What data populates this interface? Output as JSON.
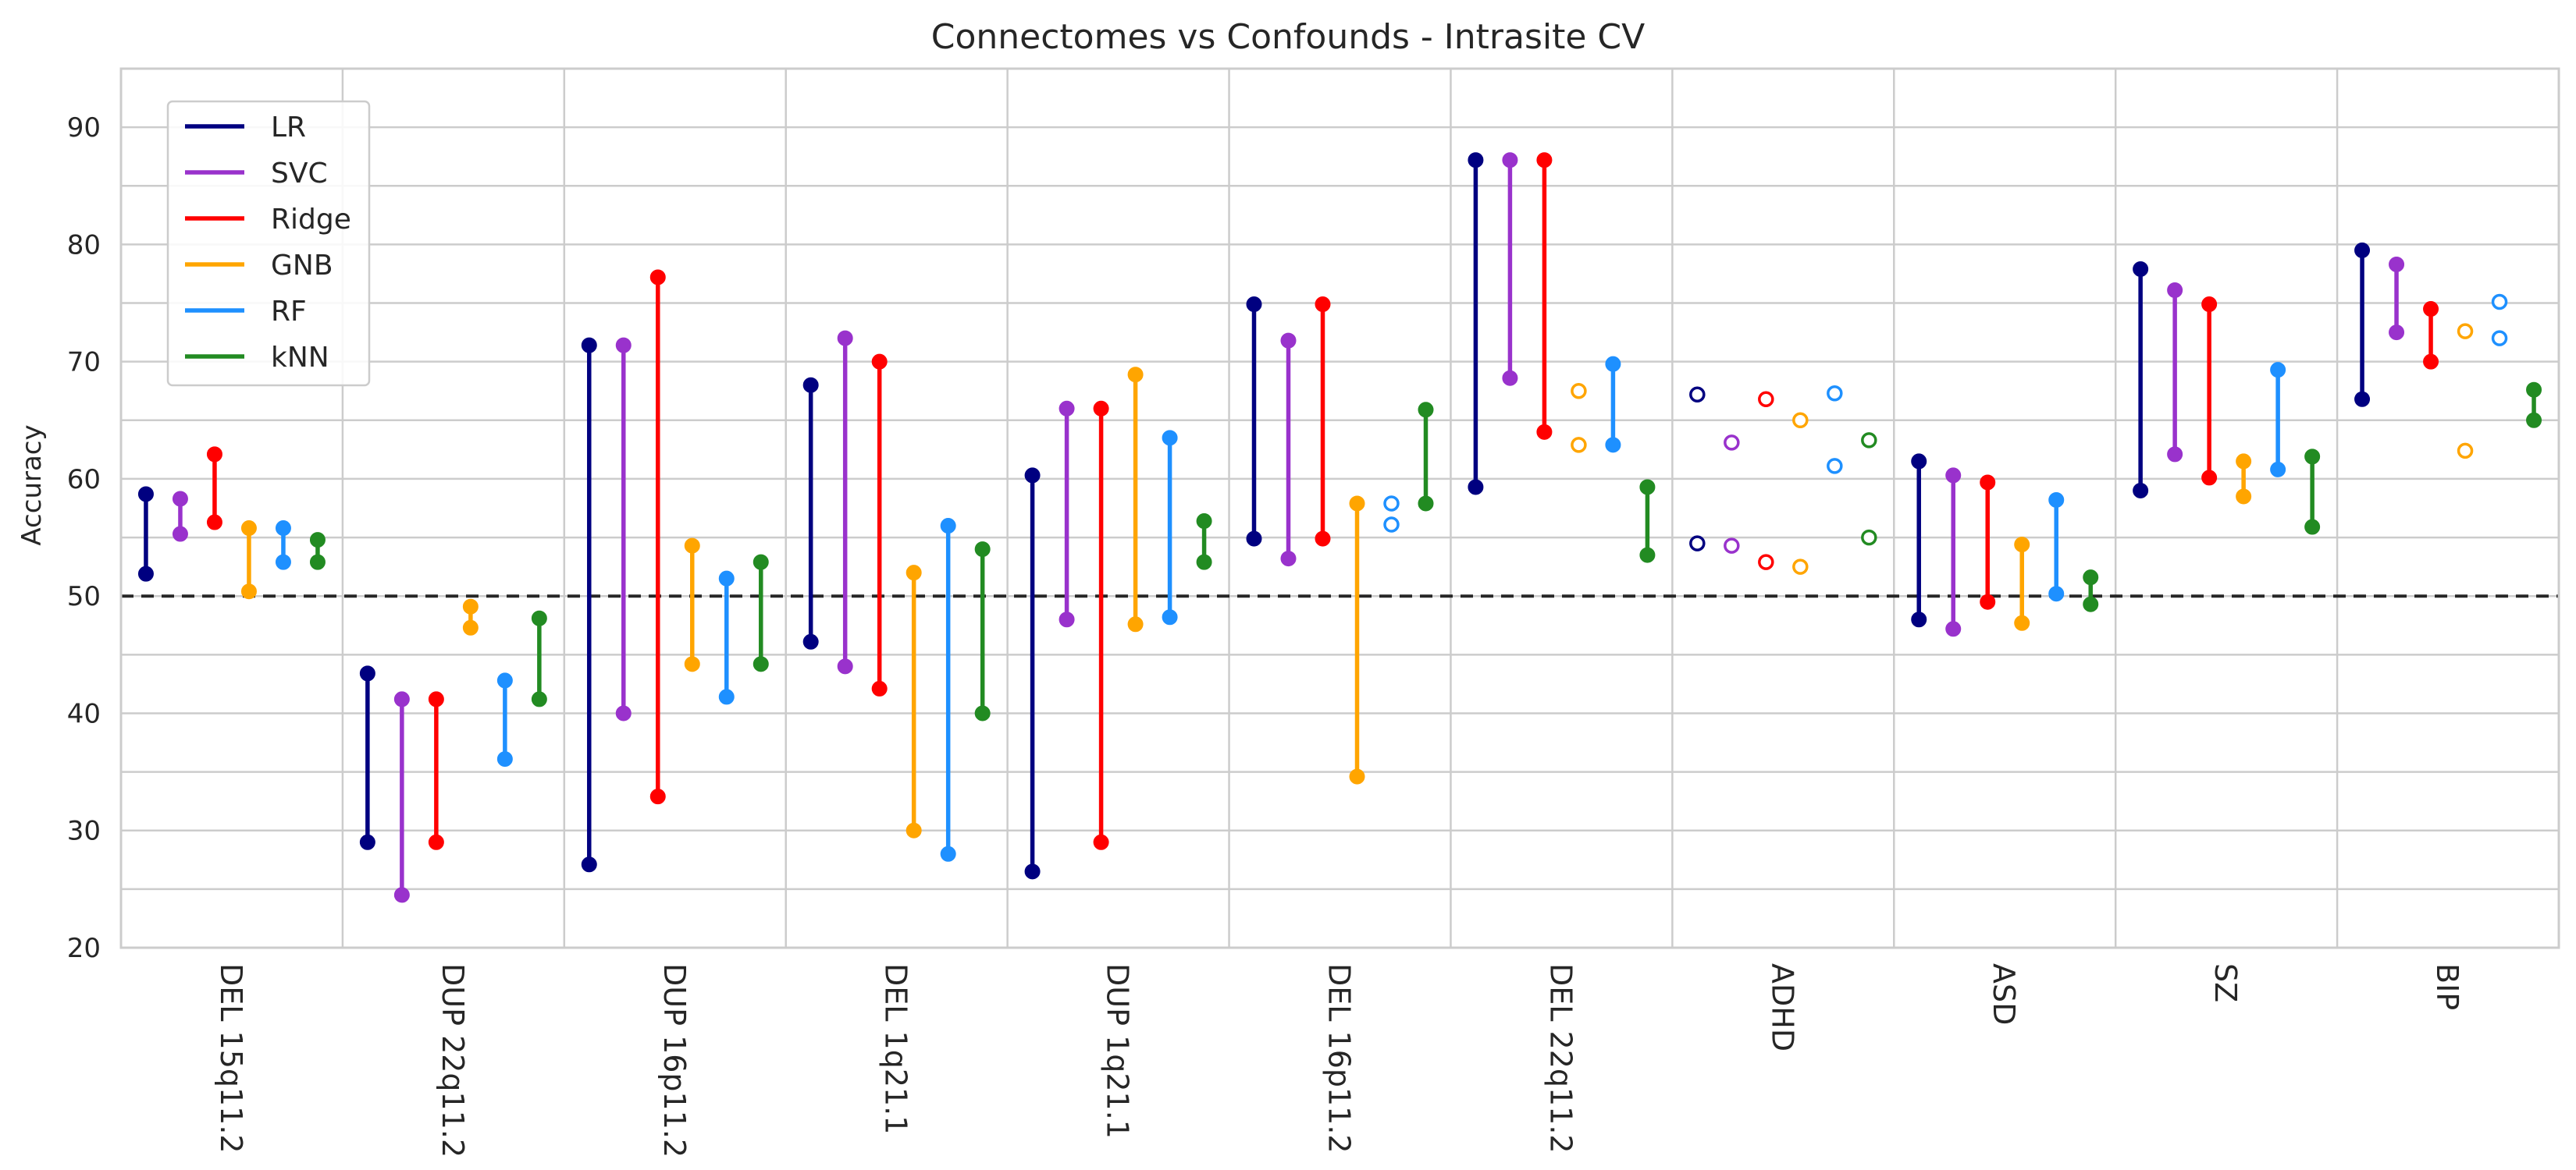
{
  "chart_data": {
    "type": "dumbbell",
    "title": "Connectomes vs Confounds - Intrasite CV",
    "xlabel": "",
    "ylabel": "Accuracy",
    "ylim": [
      20,
      95
    ],
    "yticks": [
      20,
      30,
      40,
      50,
      60,
      70,
      80,
      90
    ],
    "reference_line": 50,
    "grid": true,
    "legend_position": "top-left",
    "categories": [
      "DEL 15q11.2",
      "DUP 22q11.2",
      "DUP 16p11.2",
      "DEL 1q21.1",
      "DUP 1q21.1",
      "DEL 16p11.2",
      "DEL 22q11.2",
      "ADHD",
      "ASD",
      "SZ",
      "BIP"
    ],
    "series": [
      {
        "name": "LR",
        "color": "#000080",
        "values": [
          [
            51.9,
            58.7
          ],
          [
            29.0,
            43.4
          ],
          [
            27.1,
            71.4
          ],
          [
            46.1,
            68.0
          ],
          [
            26.5,
            60.3
          ],
          [
            54.9,
            74.9
          ],
          [
            59.3,
            87.2
          ],
          [
            54.5,
            67.2
          ],
          [
            48.0,
            61.5
          ],
          [
            59.0,
            77.9
          ],
          [
            66.8,
            79.5
          ]
        ]
      },
      {
        "name": "SVC",
        "color": "#9932cc",
        "values": [
          [
            55.3,
            58.3
          ],
          [
            24.5,
            41.2
          ],
          [
            40.0,
            71.4
          ],
          [
            44.0,
            72.0
          ],
          [
            48.0,
            66.0
          ],
          [
            53.2,
            71.8
          ],
          [
            68.6,
            87.2
          ],
          [
            54.3,
            63.1
          ],
          [
            47.2,
            60.3
          ],
          [
            62.1,
            76.1
          ],
          [
            72.5,
            78.3
          ]
        ]
      },
      {
        "name": "Ridge",
        "color": "#ff0000",
        "values": [
          [
            56.3,
            62.1
          ],
          [
            29.0,
            41.2
          ],
          [
            32.9,
            77.2
          ],
          [
            42.1,
            70.0
          ],
          [
            29.0,
            66.0
          ],
          [
            54.9,
            74.9
          ],
          [
            64.0,
            87.2
          ],
          [
            52.9,
            66.8
          ],
          [
            49.5,
            59.7
          ],
          [
            60.1,
            74.9
          ],
          [
            70.0,
            74.5
          ]
        ]
      },
      {
        "name": "GNB",
        "color": "#ffa500",
        "values": [
          [
            50.4,
            55.8
          ],
          [
            47.3,
            49.1
          ],
          [
            44.2,
            54.3
          ],
          [
            30.0,
            52.0
          ],
          [
            47.6,
            68.9
          ],
          [
            34.6,
            57.9
          ],
          [
            62.9,
            67.5
          ],
          [
            52.5,
            65.0
          ],
          [
            47.7,
            54.4
          ],
          [
            58.5,
            61.5
          ],
          [
            62.4,
            72.6
          ]
        ]
      },
      {
        "name": "RF",
        "color": "#1e90ff",
        "values": [
          [
            52.9,
            55.8
          ],
          [
            36.1,
            42.8
          ],
          [
            41.4,
            51.5
          ],
          [
            28.0,
            56.0
          ],
          [
            48.2,
            63.5
          ],
          [
            56.1,
            57.9
          ],
          [
            62.9,
            69.8
          ],
          [
            61.1,
            67.3
          ],
          [
            50.2,
            58.2
          ],
          [
            60.8,
            69.3
          ],
          [
            72.0,
            75.1
          ]
        ]
      },
      {
        "name": "kNN",
        "color": "#228b22",
        "values": [
          [
            52.9,
            54.8
          ],
          [
            41.2,
            48.1
          ],
          [
            44.2,
            52.9
          ],
          [
            40.0,
            54.0
          ],
          [
            52.9,
            56.4
          ],
          [
            57.9,
            65.9
          ],
          [
            53.5,
            59.3
          ],
          [
            55.0,
            63.3
          ],
          [
            49.3,
            51.6
          ],
          [
            55.9,
            61.9
          ],
          [
            65.0,
            67.6
          ]
        ]
      }
    ],
    "hollow_markers": {
      "ADHD": [
        "LR",
        "SVC",
        "Ridge",
        "GNB",
        "RF",
        "kNN"
      ],
      "DEL 16p11.2": [
        "RF"
      ],
      "DEL 22q11.2": [
        "GNB"
      ],
      "BIP": [
        "GNB",
        "RF"
      ]
    }
  }
}
